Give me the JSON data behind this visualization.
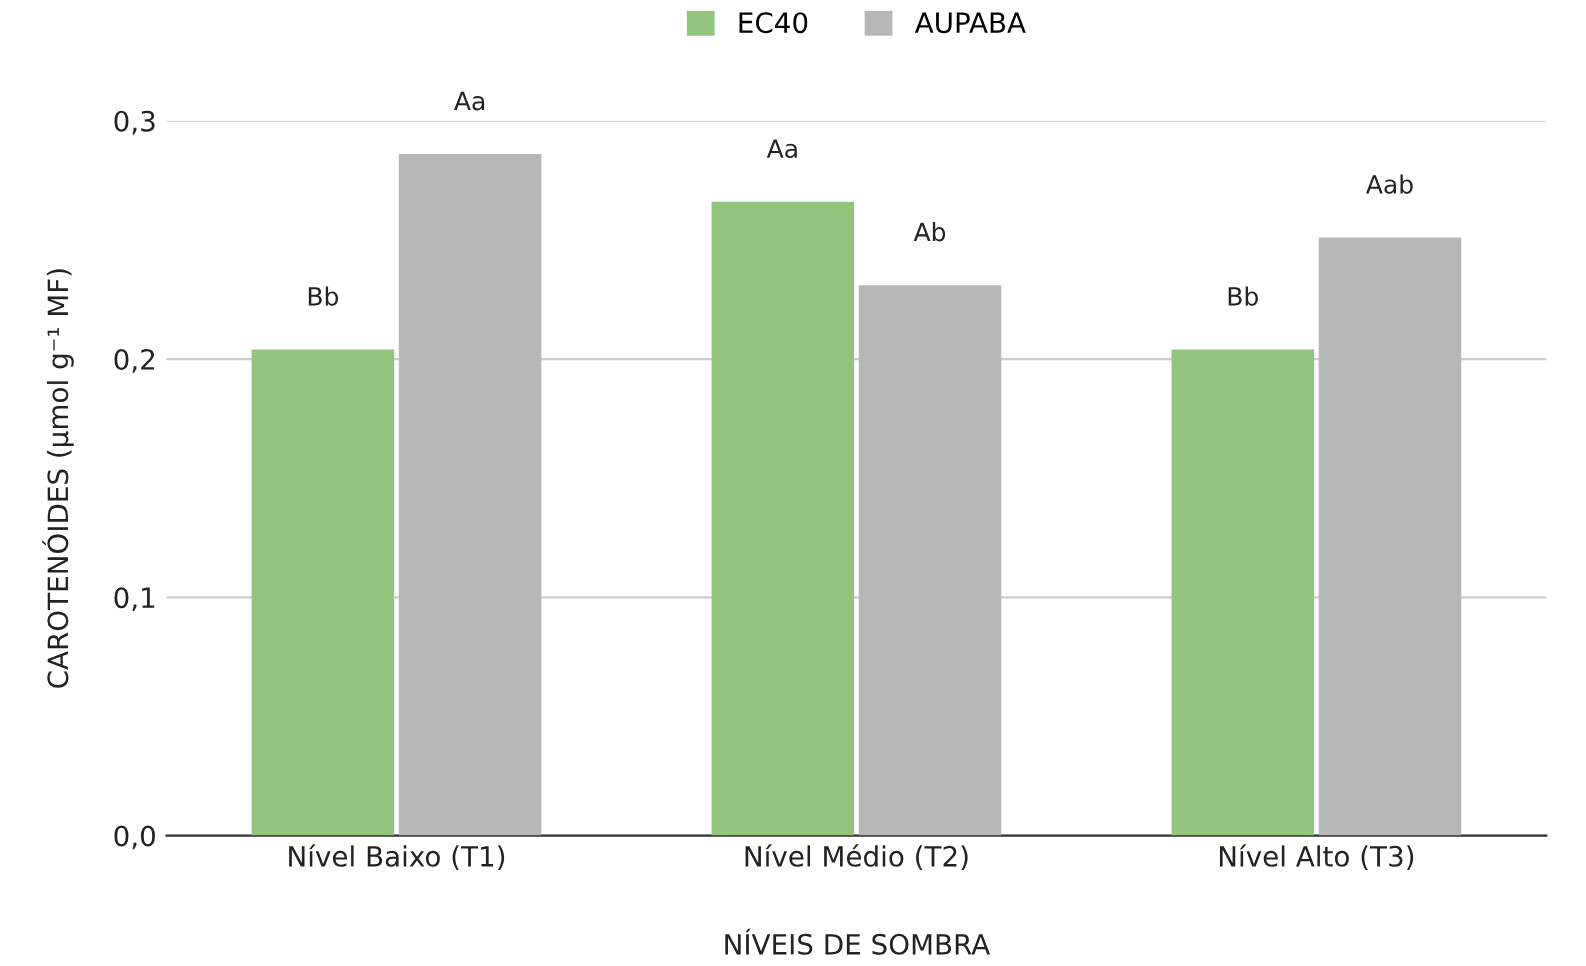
{
  "chart_data": {
    "type": "bar",
    "xlabel": "NÍVEIS DE SOMBRA",
    "ylabel": "CAROTENÓIDES (µmol g⁻¹ MF)",
    "categories": [
      "Nível Baixo (T1)",
      "Nível Médio (T2)",
      "Nível Alto (T3)"
    ],
    "series": [
      {
        "name": "EC40",
        "color": "#93c47d",
        "values": [
          0.204,
          0.266,
          0.204
        ],
        "value_labels": [
          "Bb",
          "Aa",
          "Bb"
        ]
      },
      {
        "name": "AUPABA",
        "color": "#b7b7b7",
        "values": [
          0.286,
          0.231,
          0.251
        ],
        "value_labels": [
          "Aa",
          "Ab",
          "Aab"
        ]
      }
    ],
    "ylim": [
      0,
      0.3
    ],
    "yticks": [
      {
        "value": 0,
        "label": "0,0"
      },
      {
        "value": 0.1,
        "label": "0,1"
      },
      {
        "value": 0.2,
        "label": "0,2"
      },
      {
        "value": 0.3,
        "label": "0,3"
      }
    ],
    "grid": "y",
    "legend": "top"
  }
}
